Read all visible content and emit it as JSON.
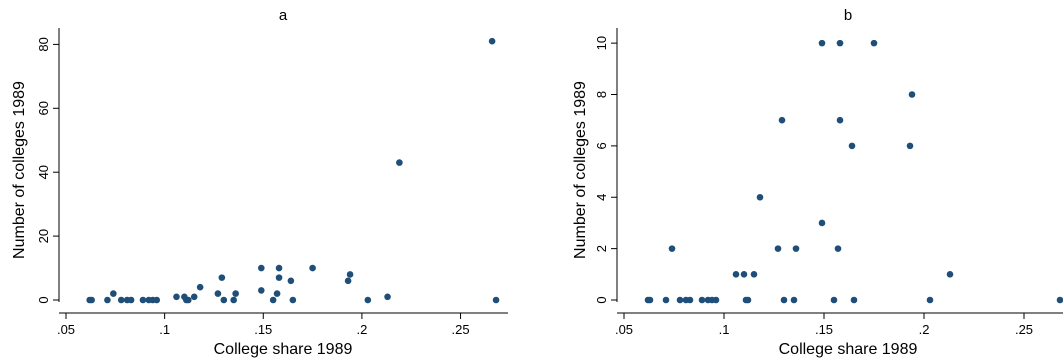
{
  "figure": {
    "panels": [
      {
        "title": "a",
        "xlabel": "College share 1989",
        "ylabel": "Number of colleges 1989"
      },
      {
        "title": "b",
        "xlabel": "College share 1989",
        "ylabel": "Number of colleges 1989"
      }
    ]
  },
  "chart_data": [
    {
      "type": "scatter",
      "title": "a",
      "xlabel": "College share 1989",
      "ylabel": "Number of colleges 1989",
      "xlim": [
        0.05,
        0.27
      ],
      "ylim": [
        0,
        82
      ],
      "xticks": [
        ".05",
        ".1",
        ".15",
        ".2",
        ".25"
      ],
      "xtick_values": [
        0.05,
        0.1,
        0.15,
        0.2,
        0.25
      ],
      "yticks": [
        "0",
        "20",
        "40",
        "60",
        "80"
      ],
      "ytick_values": [
        0,
        20,
        40,
        60,
        80
      ],
      "marker_color": "#1f4e79",
      "grid": false,
      "points": [
        [
          0.062,
          0
        ],
        [
          0.063,
          0
        ],
        [
          0.071,
          0
        ],
        [
          0.074,
          2
        ],
        [
          0.078,
          0
        ],
        [
          0.081,
          0
        ],
        [
          0.083,
          0
        ],
        [
          0.089,
          0
        ],
        [
          0.092,
          0
        ],
        [
          0.094,
          0
        ],
        [
          0.096,
          0
        ],
        [
          0.106,
          1
        ],
        [
          0.11,
          1
        ],
        [
          0.111,
          0
        ],
        [
          0.112,
          0
        ],
        [
          0.115,
          1
        ],
        [
          0.118,
          4
        ],
        [
          0.127,
          2
        ],
        [
          0.129,
          7
        ],
        [
          0.13,
          0
        ],
        [
          0.135,
          0
        ],
        [
          0.136,
          2
        ],
        [
          0.149,
          3
        ],
        [
          0.149,
          10
        ],
        [
          0.155,
          0
        ],
        [
          0.157,
          2
        ],
        [
          0.158,
          7
        ],
        [
          0.158,
          10
        ],
        [
          0.164,
          6
        ],
        [
          0.165,
          0
        ],
        [
          0.175,
          10
        ],
        [
          0.193,
          6
        ],
        [
          0.194,
          8
        ],
        [
          0.203,
          0
        ],
        [
          0.213,
          1
        ],
        [
          0.219,
          43
        ],
        [
          0.266,
          81
        ],
        [
          0.268,
          0
        ]
      ]
    },
    {
      "type": "scatter",
      "title": "b",
      "xlabel": "College share 1989",
      "ylabel": "Number of colleges 1989",
      "xlim": [
        0.05,
        0.27
      ],
      "ylim": [
        0,
        10.2
      ],
      "xticks": [
        ".05",
        ".1",
        ".15",
        ".2",
        ".25"
      ],
      "xtick_values": [
        0.05,
        0.1,
        0.15,
        0.2,
        0.25
      ],
      "yticks": [
        "0",
        "2",
        "4",
        "6",
        "8",
        "10"
      ],
      "ytick_values": [
        0,
        2,
        4,
        6,
        8,
        10
      ],
      "marker_color": "#1f4e79",
      "grid": false,
      "points": [
        [
          0.062,
          0
        ],
        [
          0.063,
          0
        ],
        [
          0.071,
          0
        ],
        [
          0.074,
          2
        ],
        [
          0.078,
          0
        ],
        [
          0.081,
          0
        ],
        [
          0.083,
          0
        ],
        [
          0.089,
          0
        ],
        [
          0.092,
          0
        ],
        [
          0.094,
          0
        ],
        [
          0.096,
          0
        ],
        [
          0.106,
          1
        ],
        [
          0.11,
          1
        ],
        [
          0.111,
          0
        ],
        [
          0.112,
          0
        ],
        [
          0.115,
          1
        ],
        [
          0.118,
          4
        ],
        [
          0.127,
          2
        ],
        [
          0.129,
          7
        ],
        [
          0.13,
          0
        ],
        [
          0.135,
          0
        ],
        [
          0.136,
          2
        ],
        [
          0.149,
          3
        ],
        [
          0.149,
          10
        ],
        [
          0.155,
          0
        ],
        [
          0.157,
          2
        ],
        [
          0.158,
          7
        ],
        [
          0.158,
          10
        ],
        [
          0.164,
          6
        ],
        [
          0.165,
          0
        ],
        [
          0.175,
          10
        ],
        [
          0.193,
          6
        ],
        [
          0.194,
          8
        ],
        [
          0.203,
          0
        ],
        [
          0.213,
          1
        ],
        [
          0.268,
          0
        ]
      ]
    }
  ]
}
